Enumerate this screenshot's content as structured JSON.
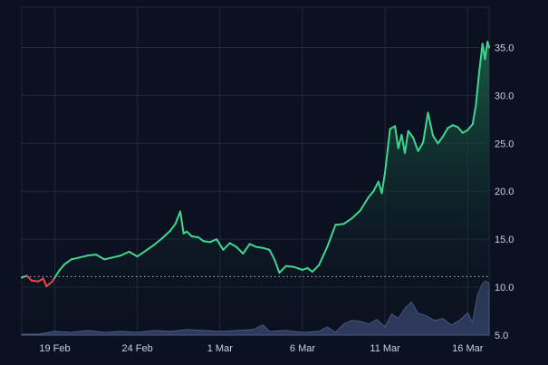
{
  "chart_data": {
    "type": "line",
    "grid": true,
    "colors": {
      "background": "#0b1120",
      "grid": "#1f2a3c",
      "line_up": "#3fd68f",
      "line_down": "#e5484d",
      "area_top": "#1b6b4c",
      "baseline": "#d8dee9",
      "volume_fill": "#2d3a5c",
      "volume_line": "#4a5b86",
      "tick_text": "#c9d1dc"
    },
    "price": {
      "ylim": [
        5.0,
        39.2
      ],
      "yticks": [
        "35.0",
        "30.0",
        "25.0",
        "20.0",
        "15.0",
        "10.0",
        "5.0"
      ],
      "yvalues": [
        35,
        30,
        25,
        20,
        15,
        10,
        5
      ],
      "baseline_value": 11.1
    },
    "x_axis": {
      "xlim": [
        0,
        28.3
      ],
      "ticks": [
        {
          "label": "19 Feb",
          "value": 2
        },
        {
          "label": "24 Feb",
          "value": 7
        },
        {
          "label": "1 Mar",
          "value": 12
        },
        {
          "label": "6 Mar",
          "value": 17
        },
        {
          "label": "11 Mar",
          "value": 22
        },
        {
          "label": "16 Mar",
          "value": 27
        }
      ]
    },
    "series": [
      {
        "x": [
          0,
          0.3,
          0.6,
          1.0,
          1.3,
          1.5,
          1.8,
          2.0,
          2.3,
          2.6,
          3.0,
          3.5,
          4.0,
          4.5,
          5.0,
          5.5,
          6.0,
          6.5,
          7.0,
          7.5,
          8.0,
          8.5,
          9.0,
          9.3,
          9.6,
          9.8,
          10.0,
          10.3,
          10.7,
          11.0,
          11.4,
          11.8,
          12.2,
          12.6,
          13.0,
          13.4,
          13.8,
          14.2,
          14.6,
          15.0,
          15.3,
          15.6,
          16.0,
          16.5,
          17.0,
          17.3,
          17.6,
          18.0,
          18.5,
          19.0,
          19.5,
          20.0,
          20.5,
          21.0,
          21.3,
          21.6,
          21.8,
          22.0,
          22.3,
          22.6,
          22.8,
          23.0,
          23.2,
          23.4,
          23.7,
          24.0,
          24.3,
          24.6,
          24.9,
          25.2,
          25.5,
          25.8,
          26.1,
          26.4,
          26.7,
          27.0,
          27.3,
          27.5,
          27.7,
          27.9,
          28.05,
          28.2,
          28.3
        ],
        "y": [
          11.0,
          11.2,
          10.7,
          10.6,
          10.9,
          10.1,
          10.5,
          11.0,
          11.8,
          12.4,
          12.9,
          13.1,
          13.3,
          13.4,
          12.9,
          13.1,
          13.3,
          13.7,
          13.2,
          13.8,
          14.4,
          15.1,
          15.9,
          16.6,
          17.9,
          15.6,
          15.8,
          15.3,
          15.2,
          14.8,
          14.7,
          15.0,
          13.9,
          14.6,
          14.2,
          13.5,
          14.5,
          14.2,
          14.1,
          13.9,
          12.9,
          11.5,
          12.2,
          12.1,
          11.8,
          12.0,
          11.6,
          12.3,
          14.2,
          16.5,
          16.6,
          17.2,
          18.0,
          19.4,
          20.0,
          21.0,
          19.8,
          22.0,
          26.5,
          26.8,
          24.5,
          25.9,
          24.0,
          26.3,
          25.6,
          24.2,
          25.1,
          28.2,
          25.8,
          25.0,
          25.7,
          26.6,
          26.9,
          26.7,
          26.1,
          26.4,
          27.0,
          29.0,
          32.5,
          35.4,
          33.8,
          35.6,
          35.0
        ]
      }
    ],
    "volume": {
      "ylim": [
        0,
        6.4
      ],
      "x": [
        0,
        1.0,
        2.0,
        3.0,
        4.0,
        5.0,
        6.0,
        7.0,
        8.0,
        9.0,
        10.0,
        11.0,
        12.0,
        13.0,
        14.0,
        14.6,
        15.0,
        16.0,
        17.0,
        18.0,
        18.5,
        19.0,
        19.5,
        20.0,
        20.5,
        21.0,
        21.5,
        22.0,
        22.4,
        22.8,
        23.2,
        23.6,
        24.0,
        24.5,
        25.0,
        25.5,
        26.0,
        26.5,
        27.0,
        27.3,
        27.6,
        27.9,
        28.1,
        28.3
      ],
      "y": [
        0.1,
        0.1,
        0.4,
        0.3,
        0.5,
        0.3,
        0.4,
        0.3,
        0.5,
        0.4,
        0.6,
        0.5,
        0.4,
        0.5,
        0.6,
        1.1,
        0.4,
        0.5,
        0.3,
        0.4,
        0.9,
        0.3,
        1.2,
        1.6,
        1.5,
        1.2,
        1.7,
        0.9,
        2.3,
        1.8,
        2.9,
        3.6,
        2.4,
        2.1,
        1.6,
        1.8,
        1.1,
        1.6,
        2.4,
        1.4,
        4.4,
        5.6,
        5.9,
        5.6
      ]
    }
  }
}
